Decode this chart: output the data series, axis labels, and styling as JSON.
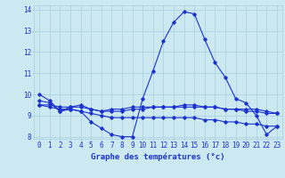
{
  "title": "Graphe des températures (°c)",
  "background_color": "#cce8f0",
  "grid_color": "#a8cfe0",
  "line_color": "#1a33cc",
  "hours": [
    0,
    1,
    2,
    3,
    4,
    5,
    6,
    7,
    8,
    9,
    10,
    11,
    12,
    13,
    14,
    15,
    16,
    17,
    18,
    19,
    20,
    21,
    22,
    23
  ],
  "curve1": [
    10.0,
    9.7,
    9.2,
    9.3,
    9.2,
    8.7,
    8.4,
    8.1,
    8.0,
    8.0,
    9.8,
    11.1,
    12.5,
    13.4,
    13.9,
    13.8,
    12.6,
    11.5,
    10.8,
    9.8,
    9.6,
    9.0,
    8.1,
    8.5
  ],
  "curve2": [
    9.7,
    9.6,
    9.2,
    9.4,
    9.5,
    9.3,
    9.2,
    9.3,
    9.3,
    9.4,
    9.4,
    9.4,
    9.4,
    9.4,
    9.4,
    9.4,
    9.4,
    9.4,
    9.3,
    9.3,
    9.3,
    9.3,
    9.2,
    9.1
  ],
  "curve3": [
    9.5,
    9.5,
    9.4,
    9.4,
    9.4,
    9.3,
    9.2,
    9.2,
    9.2,
    9.3,
    9.3,
    9.4,
    9.4,
    9.4,
    9.5,
    9.5,
    9.4,
    9.4,
    9.3,
    9.3,
    9.2,
    9.2,
    9.1,
    9.1
  ],
  "curve4": [
    9.5,
    9.4,
    9.3,
    9.3,
    9.2,
    9.1,
    9.0,
    8.9,
    8.9,
    8.9,
    8.9,
    8.9,
    8.9,
    8.9,
    8.9,
    8.9,
    8.8,
    8.8,
    8.7,
    8.7,
    8.6,
    8.6,
    8.5,
    8.5
  ],
  "ylim": [
    7.9,
    14.2
  ],
  "yticks": [
    8,
    9,
    10,
    11,
    12,
    13,
    14
  ],
  "tick_fontsize": 5.5,
  "xlabel_fontsize": 6.5
}
